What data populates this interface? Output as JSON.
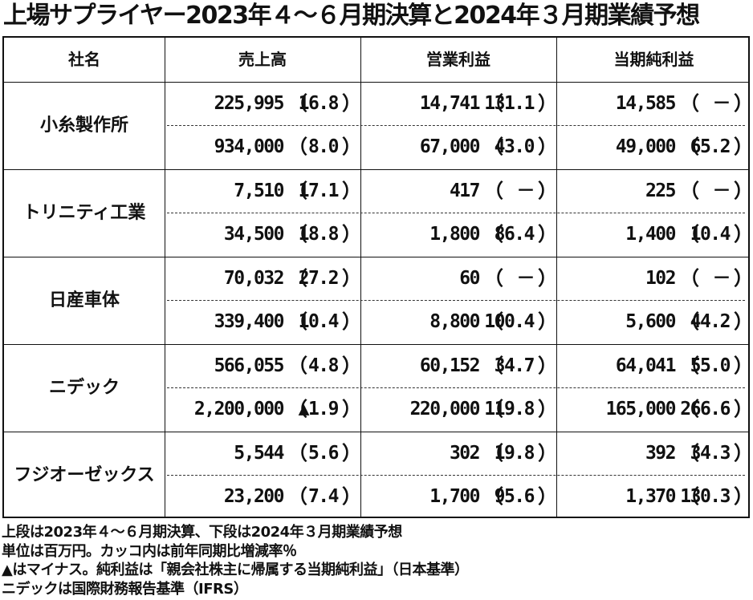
{
  "title": "上場サプライヤー2023年４～６月期決算と2024年３月期業績予想",
  "headers": [
    "社名",
    "売上高",
    "営業利益",
    "当期純利益"
  ],
  "companies": [
    {
      "name": "小糸製作所",
      "rows": [
        [
          {
            "v": "225,995",
            "p": "16.8"
          },
          {
            "v": "14,741",
            "p": "131.1"
          },
          {
            "v": "14,585",
            "p": "－"
          }
        ],
        [
          {
            "v": "934,000",
            "p": "8.0"
          },
          {
            "v": "67,000",
            "p": "43.0"
          },
          {
            "v": "49,000",
            "p": "65.2"
          }
        ]
      ]
    },
    {
      "name": "トリニティ工業",
      "rows": [
        [
          {
            "v": "7,510",
            "p": "17.1"
          },
          {
            "v": "417",
            "p": "－"
          },
          {
            "v": "225",
            "p": "－"
          }
        ],
        [
          {
            "v": "34,500",
            "p": "18.8"
          },
          {
            "v": "1,800",
            "p": "86.4"
          },
          {
            "v": "1,400",
            "p": "10.4"
          }
        ]
      ]
    },
    {
      "name": "日産車体",
      "rows": [
        [
          {
            "v": "70,032",
            "p": "27.2"
          },
          {
            "v": "60",
            "p": "－"
          },
          {
            "v": "102",
            "p": "－"
          }
        ],
        [
          {
            "v": "339,400",
            "p": "10.4"
          },
          {
            "v": "8,800",
            "p": "100.4"
          },
          {
            "v": "5,600",
            "p": "44.2"
          }
        ]
      ]
    },
    {
      "name": "ニデック",
      "rows": [
        [
          {
            "v": "566,055",
            "p": "4.8"
          },
          {
            "v": "60,152",
            "p": "34.7"
          },
          {
            "v": "64,041",
            "p": "55.0"
          }
        ],
        [
          {
            "v": "2,200,000",
            "p": "▲1.9"
          },
          {
            "v": "220,000",
            "p": "119.8"
          },
          {
            "v": "165,000",
            "p": "266.6"
          }
        ]
      ]
    },
    {
      "name": "フジオーゼックス",
      "rows": [
        [
          {
            "v": "5,544",
            "p": "5.6"
          },
          {
            "v": "302",
            "p": "19.8"
          },
          {
            "v": "392",
            "p": "34.3"
          }
        ],
        [
          {
            "v": "23,200",
            "p": "7.4"
          },
          {
            "v": "1,700",
            "p": "95.6"
          },
          {
            "v": "1,370",
            "p": "130.3"
          }
        ]
      ]
    }
  ],
  "paren_open": "（",
  "paren_close": "）",
  "notes": [
    "上段は2023年４～６月期決算、下段は2024年３月期業績予想",
    "単位は百万円。カッコ内は前年同期比増減率％",
    "▲はマイナス。純利益は「親会社株主に帰属する当期純利益」（日本基準）",
    "ニデックは国際財務報告基準（IFRS）"
  ]
}
